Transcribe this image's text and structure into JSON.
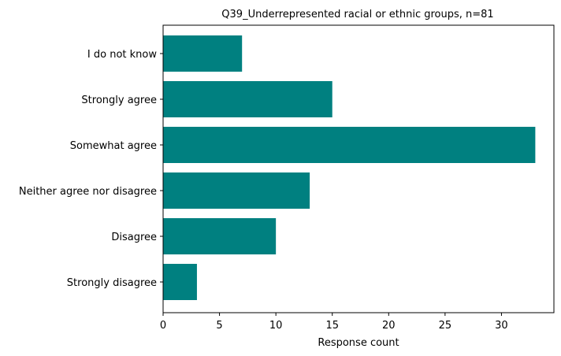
{
  "chart_data": {
    "type": "bar",
    "orientation": "horizontal",
    "title": "Q39_Underrepresented racial or ethnic groups, n=81",
    "xlabel": "Response count",
    "ylabel": "",
    "categories": [
      "Strongly disagree",
      "Disagree",
      "Neither agree nor disagree",
      "Somewhat agree",
      "Strongly agree",
      "I do not know"
    ],
    "values": [
      3,
      10,
      13,
      33,
      15,
      7
    ],
    "xlim": [
      0,
      34.65
    ],
    "xticks": [
      0,
      5,
      10,
      15,
      20,
      25,
      30
    ],
    "xtick_labels": [
      "0",
      "5",
      "10",
      "15",
      "20",
      "25",
      "30"
    ],
    "grid": false,
    "bar_color": "#008080"
  }
}
